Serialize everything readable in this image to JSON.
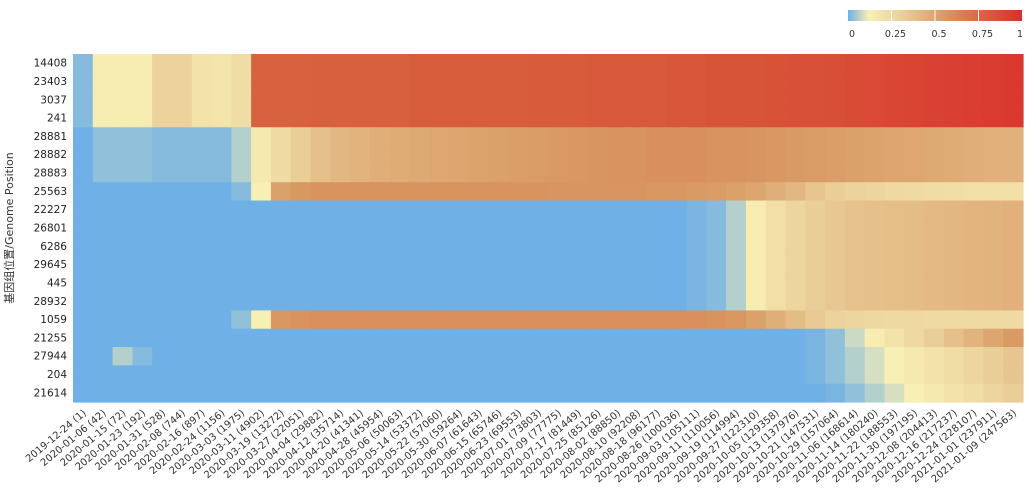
{
  "chart_data": {
    "type": "heatmap",
    "ylabel": "基因组位置/Genome Position",
    "legend_placement": "top-right",
    "colorbar": {
      "range": [
        0,
        1
      ],
      "ticks": [
        "0",
        "0.25",
        "0.5",
        "0.75",
        "1"
      ],
      "stops": [
        {
          "v": 0.0,
          "color": "#6fb0e6"
        },
        {
          "v": 0.12,
          "color": "#f8efb4"
        },
        {
          "v": 0.3,
          "color": "#ecd29d"
        },
        {
          "v": 0.55,
          "color": "#d99a64"
        },
        {
          "v": 0.78,
          "color": "#d8623f"
        },
        {
          "v": 1.0,
          "color": "#d9302a"
        }
      ]
    },
    "rows": [
      "14408",
      "23403",
      "3037",
      "241",
      "28881",
      "28882",
      "28883",
      "25563",
      "22227",
      "26801",
      "6286",
      "29645",
      "445",
      "28932",
      "1059",
      "21255",
      "27944",
      "204",
      "21614"
    ],
    "x_ticks": [
      "2019-12-24 (1)",
      "2020-01-06 (42)",
      "2020-01-15 (72)",
      "2020-01-23 (192)",
      "2020-01-31 (528)",
      "2020-02-08 (744)",
      "2020-02-16 (897)",
      "2020-02-24 (1156)",
      "2020-03-03 (1975)",
      "2020-03-11 (4902)",
      "2020-03-19 (13272)",
      "2020-03-27 (22051)",
      "2020-04-04 (29882)",
      "2020-04-12 (35714)",
      "2020-04-20 (41341)",
      "2020-04-28 (45954)",
      "2020-05-06 (50063)",
      "2020-05-14 (53372)",
      "2020-05-22 (57060)",
      "2020-05-30 (59264)",
      "2020-06-07 (61643)",
      "2020-06-15 (65746)",
      "2020-06-23 (69553)",
      "2020-07-01 (73803)",
      "2020-07-09 (77775)",
      "2020-07-17 (81449)",
      "2020-07-25 (85126)",
      "2020-08-02 (88850)",
      "2020-08-10 (92208)",
      "2020-08-18 (96177)",
      "2020-08-26 (100036)",
      "2020-09-03 (105111)",
      "2020-09-11 (110056)",
      "2020-09-19 (114994)",
      "2020-09-27 (122310)",
      "2020-10-05 (129358)",
      "2020-10-13 (137976)",
      "2020-10-21 (147531)",
      "2020-10-29 (157064)",
      "2020-11-06 (168614)",
      "2020-11-14 (180240)",
      "2020-11-22 (188553)",
      "2020-11-30 (197195)",
      "2020-12-08 (204413)",
      "2020-12-16 (217237)",
      "2020-12-24 (228107)",
      "2021-01-01 (237911)",
      "2021-01-09 (247563)"
    ],
    "values": [
      [
        0.02,
        0.14,
        0.14,
        0.14,
        0.3,
        0.3,
        0.2,
        0.18,
        0.24,
        0.78,
        0.78,
        0.78,
        0.79,
        0.79,
        0.79,
        0.79,
        0.79,
        0.8,
        0.8,
        0.8,
        0.8,
        0.8,
        0.8,
        0.81,
        0.81,
        0.81,
        0.82,
        0.82,
        0.82,
        0.82,
        0.83,
        0.83,
        0.84,
        0.84,
        0.84,
        0.85,
        0.86,
        0.86,
        0.87,
        0.88,
        0.89,
        0.9,
        0.91,
        0.92,
        0.93,
        0.94,
        0.95,
        0.96
      ],
      [
        0.02,
        0.14,
        0.14,
        0.14,
        0.3,
        0.3,
        0.2,
        0.18,
        0.24,
        0.78,
        0.78,
        0.78,
        0.79,
        0.79,
        0.79,
        0.79,
        0.79,
        0.8,
        0.8,
        0.8,
        0.8,
        0.8,
        0.8,
        0.81,
        0.81,
        0.81,
        0.82,
        0.82,
        0.82,
        0.82,
        0.83,
        0.83,
        0.84,
        0.84,
        0.84,
        0.85,
        0.86,
        0.86,
        0.87,
        0.88,
        0.89,
        0.9,
        0.91,
        0.92,
        0.93,
        0.94,
        0.95,
        0.96
      ],
      [
        0.02,
        0.14,
        0.14,
        0.14,
        0.3,
        0.3,
        0.2,
        0.18,
        0.24,
        0.78,
        0.78,
        0.78,
        0.79,
        0.79,
        0.79,
        0.79,
        0.79,
        0.8,
        0.8,
        0.8,
        0.8,
        0.8,
        0.8,
        0.81,
        0.81,
        0.81,
        0.82,
        0.82,
        0.82,
        0.82,
        0.83,
        0.83,
        0.84,
        0.84,
        0.84,
        0.85,
        0.86,
        0.86,
        0.87,
        0.88,
        0.89,
        0.9,
        0.91,
        0.92,
        0.93,
        0.94,
        0.95,
        0.96
      ],
      [
        0.02,
        0.14,
        0.14,
        0.14,
        0.3,
        0.3,
        0.2,
        0.18,
        0.24,
        0.78,
        0.78,
        0.78,
        0.79,
        0.79,
        0.79,
        0.79,
        0.79,
        0.8,
        0.8,
        0.8,
        0.8,
        0.8,
        0.8,
        0.81,
        0.81,
        0.81,
        0.82,
        0.82,
        0.82,
        0.82,
        0.83,
        0.83,
        0.84,
        0.84,
        0.84,
        0.85,
        0.86,
        0.86,
        0.87,
        0.88,
        0.89,
        0.9,
        0.91,
        0.92,
        0.93,
        0.94,
        0.95,
        0.96
      ],
      [
        0.0,
        0.03,
        0.03,
        0.03,
        0.02,
        0.02,
        0.02,
        0.02,
        0.06,
        0.16,
        0.25,
        0.32,
        0.38,
        0.42,
        0.44,
        0.46,
        0.47,
        0.48,
        0.49,
        0.5,
        0.51,
        0.52,
        0.53,
        0.54,
        0.55,
        0.56,
        0.57,
        0.58,
        0.58,
        0.59,
        0.59,
        0.59,
        0.58,
        0.58,
        0.57,
        0.56,
        0.55,
        0.54,
        0.53,
        0.52,
        0.51,
        0.5,
        0.49,
        0.48,
        0.47,
        0.46,
        0.45,
        0.45
      ],
      [
        0.0,
        0.03,
        0.03,
        0.03,
        0.02,
        0.02,
        0.02,
        0.02,
        0.06,
        0.16,
        0.25,
        0.32,
        0.38,
        0.42,
        0.44,
        0.46,
        0.47,
        0.48,
        0.49,
        0.5,
        0.51,
        0.52,
        0.53,
        0.54,
        0.55,
        0.56,
        0.57,
        0.58,
        0.58,
        0.59,
        0.59,
        0.59,
        0.58,
        0.58,
        0.57,
        0.56,
        0.55,
        0.54,
        0.53,
        0.52,
        0.51,
        0.5,
        0.49,
        0.48,
        0.47,
        0.46,
        0.45,
        0.45
      ],
      [
        0.0,
        0.03,
        0.03,
        0.03,
        0.02,
        0.02,
        0.02,
        0.02,
        0.06,
        0.16,
        0.25,
        0.32,
        0.38,
        0.42,
        0.44,
        0.46,
        0.47,
        0.48,
        0.49,
        0.5,
        0.51,
        0.52,
        0.53,
        0.54,
        0.55,
        0.56,
        0.57,
        0.58,
        0.58,
        0.59,
        0.59,
        0.59,
        0.58,
        0.58,
        0.57,
        0.56,
        0.55,
        0.54,
        0.53,
        0.52,
        0.51,
        0.5,
        0.49,
        0.48,
        0.47,
        0.46,
        0.45,
        0.45
      ],
      [
        0.0,
        0.0,
        0.0,
        0.0,
        0.0,
        0.0,
        0.0,
        0.0,
        0.02,
        0.12,
        0.52,
        0.56,
        0.58,
        0.58,
        0.58,
        0.58,
        0.58,
        0.58,
        0.58,
        0.58,
        0.58,
        0.58,
        0.58,
        0.58,
        0.57,
        0.57,
        0.57,
        0.57,
        0.57,
        0.56,
        0.56,
        0.55,
        0.54,
        0.52,
        0.5,
        0.46,
        0.42,
        0.36,
        0.32,
        0.3,
        0.28,
        0.26,
        0.25,
        0.24,
        0.23,
        0.22,
        0.22,
        0.22
      ],
      [
        0.0,
        0.0,
        0.0,
        0.0,
        0.0,
        0.0,
        0.0,
        0.0,
        0.0,
        0.0,
        0.0,
        0.0,
        0.0,
        0.0,
        0.0,
        0.0,
        0.0,
        0.0,
        0.0,
        0.0,
        0.0,
        0.0,
        0.0,
        0.0,
        0.0,
        0.0,
        0.0,
        0.0,
        0.0,
        0.0,
        0.0,
        0.01,
        0.02,
        0.06,
        0.14,
        0.22,
        0.28,
        0.32,
        0.35,
        0.37,
        0.38,
        0.39,
        0.4,
        0.41,
        0.42,
        0.43,
        0.44,
        0.45
      ],
      [
        0.0,
        0.0,
        0.0,
        0.0,
        0.0,
        0.0,
        0.0,
        0.0,
        0.0,
        0.0,
        0.0,
        0.0,
        0.0,
        0.0,
        0.0,
        0.0,
        0.0,
        0.0,
        0.0,
        0.0,
        0.0,
        0.0,
        0.0,
        0.0,
        0.0,
        0.0,
        0.0,
        0.0,
        0.0,
        0.0,
        0.0,
        0.01,
        0.02,
        0.06,
        0.14,
        0.22,
        0.28,
        0.32,
        0.35,
        0.37,
        0.38,
        0.39,
        0.4,
        0.41,
        0.42,
        0.43,
        0.44,
        0.45
      ],
      [
        0.0,
        0.0,
        0.0,
        0.0,
        0.0,
        0.0,
        0.0,
        0.0,
        0.0,
        0.0,
        0.0,
        0.0,
        0.0,
        0.0,
        0.0,
        0.0,
        0.0,
        0.0,
        0.0,
        0.0,
        0.0,
        0.0,
        0.0,
        0.0,
        0.0,
        0.0,
        0.0,
        0.0,
        0.0,
        0.0,
        0.0,
        0.01,
        0.02,
        0.06,
        0.14,
        0.22,
        0.28,
        0.32,
        0.35,
        0.37,
        0.38,
        0.39,
        0.4,
        0.41,
        0.42,
        0.43,
        0.44,
        0.45
      ],
      [
        0.0,
        0.0,
        0.0,
        0.0,
        0.0,
        0.0,
        0.0,
        0.0,
        0.0,
        0.0,
        0.0,
        0.0,
        0.0,
        0.0,
        0.0,
        0.0,
        0.0,
        0.0,
        0.0,
        0.0,
        0.0,
        0.0,
        0.0,
        0.0,
        0.0,
        0.0,
        0.0,
        0.0,
        0.0,
        0.0,
        0.0,
        0.01,
        0.02,
        0.06,
        0.14,
        0.22,
        0.28,
        0.32,
        0.35,
        0.37,
        0.38,
        0.39,
        0.4,
        0.41,
        0.42,
        0.43,
        0.44,
        0.45
      ],
      [
        0.0,
        0.0,
        0.0,
        0.0,
        0.0,
        0.0,
        0.0,
        0.0,
        0.0,
        0.0,
        0.0,
        0.0,
        0.0,
        0.0,
        0.0,
        0.0,
        0.0,
        0.0,
        0.0,
        0.0,
        0.0,
        0.0,
        0.0,
        0.0,
        0.0,
        0.0,
        0.0,
        0.0,
        0.0,
        0.0,
        0.0,
        0.01,
        0.02,
        0.06,
        0.14,
        0.22,
        0.28,
        0.32,
        0.35,
        0.37,
        0.38,
        0.39,
        0.4,
        0.41,
        0.42,
        0.43,
        0.44,
        0.45
      ],
      [
        0.0,
        0.0,
        0.0,
        0.0,
        0.0,
        0.0,
        0.0,
        0.0,
        0.0,
        0.0,
        0.0,
        0.0,
        0.0,
        0.0,
        0.0,
        0.0,
        0.0,
        0.0,
        0.0,
        0.0,
        0.0,
        0.0,
        0.0,
        0.0,
        0.0,
        0.0,
        0.0,
        0.0,
        0.0,
        0.0,
        0.0,
        0.01,
        0.02,
        0.06,
        0.14,
        0.22,
        0.28,
        0.32,
        0.35,
        0.37,
        0.38,
        0.39,
        0.4,
        0.41,
        0.42,
        0.43,
        0.44,
        0.45
      ],
      [
        0.0,
        0.0,
        0.0,
        0.0,
        0.0,
        0.0,
        0.0,
        0.0,
        0.03,
        0.12,
        0.56,
        0.58,
        0.6,
        0.6,
        0.6,
        0.6,
        0.6,
        0.6,
        0.6,
        0.6,
        0.6,
        0.6,
        0.6,
        0.6,
        0.6,
        0.6,
        0.6,
        0.6,
        0.6,
        0.6,
        0.6,
        0.59,
        0.58,
        0.56,
        0.52,
        0.46,
        0.4,
        0.34,
        0.3,
        0.28,
        0.27,
        0.26,
        0.26,
        0.25,
        0.25,
        0.25,
        0.25,
        0.25
      ],
      [
        0.0,
        0.0,
        0.0,
        0.0,
        0.0,
        0.0,
        0.0,
        0.0,
        0.0,
        0.0,
        0.0,
        0.0,
        0.0,
        0.0,
        0.0,
        0.0,
        0.0,
        0.0,
        0.0,
        0.0,
        0.0,
        0.0,
        0.0,
        0.0,
        0.0,
        0.0,
        0.0,
        0.0,
        0.0,
        0.0,
        0.0,
        0.0,
        0.0,
        0.0,
        0.0,
        0.0,
        0.0,
        0.01,
        0.03,
        0.08,
        0.14,
        0.2,
        0.26,
        0.32,
        0.38,
        0.44,
        0.5,
        0.55
      ],
      [
        0.0,
        0.0,
        0.06,
        0.02,
        0.0,
        0.0,
        0.0,
        0.0,
        0.0,
        0.0,
        0.0,
        0.0,
        0.0,
        0.0,
        0.0,
        0.0,
        0.0,
        0.0,
        0.0,
        0.0,
        0.0,
        0.0,
        0.0,
        0.0,
        0.0,
        0.0,
        0.0,
        0.0,
        0.0,
        0.0,
        0.0,
        0.0,
        0.0,
        0.0,
        0.0,
        0.0,
        0.0,
        0.01,
        0.03,
        0.06,
        0.09,
        0.12,
        0.16,
        0.2,
        0.24,
        0.28,
        0.32,
        0.36
      ],
      [
        0.0,
        0.0,
        0.0,
        0.0,
        0.0,
        0.0,
        0.0,
        0.0,
        0.0,
        0.0,
        0.0,
        0.0,
        0.0,
        0.0,
        0.0,
        0.0,
        0.0,
        0.0,
        0.0,
        0.0,
        0.0,
        0.0,
        0.0,
        0.0,
        0.0,
        0.0,
        0.0,
        0.0,
        0.0,
        0.0,
        0.0,
        0.0,
        0.0,
        0.0,
        0.0,
        0.0,
        0.0,
        0.01,
        0.03,
        0.06,
        0.09,
        0.12,
        0.16,
        0.2,
        0.24,
        0.28,
        0.32,
        0.36
      ],
      [
        0.0,
        0.0,
        0.0,
        0.0,
        0.0,
        0.0,
        0.0,
        0.0,
        0.0,
        0.0,
        0.0,
        0.0,
        0.0,
        0.0,
        0.0,
        0.0,
        0.0,
        0.0,
        0.0,
        0.0,
        0.0,
        0.0,
        0.0,
        0.0,
        0.0,
        0.0,
        0.0,
        0.0,
        0.0,
        0.0,
        0.0,
        0.0,
        0.0,
        0.0,
        0.0,
        0.0,
        0.0,
        0.0,
        0.01,
        0.03,
        0.06,
        0.09,
        0.12,
        0.16,
        0.2,
        0.24,
        0.28,
        0.32
      ]
    ]
  }
}
